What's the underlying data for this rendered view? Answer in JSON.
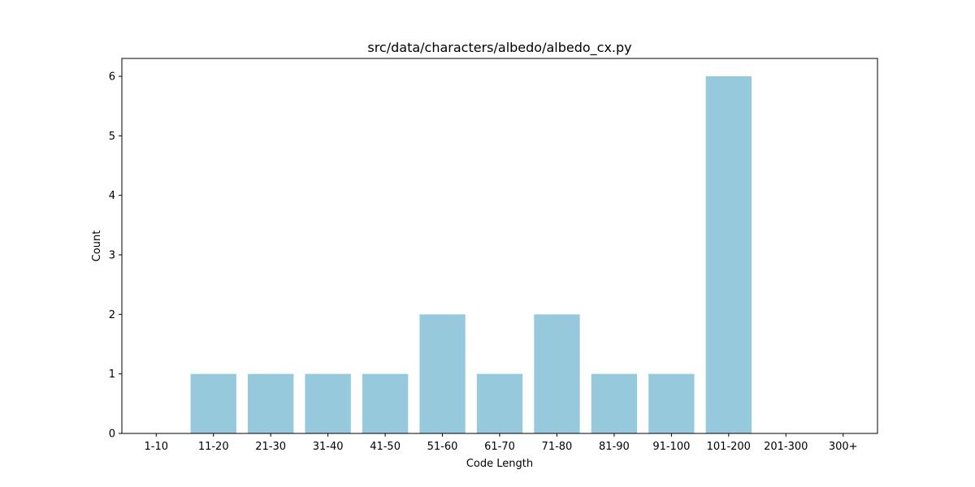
{
  "chart_data": {
    "type": "bar",
    "title": "src/data/characters/albedo/albedo_cx.py",
    "xlabel": "Code Length",
    "ylabel": "Count",
    "categories": [
      "1-10",
      "11-20",
      "21-30",
      "31-40",
      "41-50",
      "51-60",
      "61-70",
      "71-80",
      "81-90",
      "91-100",
      "101-200",
      "201-300",
      "300+"
    ],
    "values": [
      0,
      1,
      1,
      1,
      1,
      2,
      1,
      2,
      1,
      1,
      6,
      0,
      0
    ],
    "ylim": [
      0,
      6.3
    ],
    "yticks": [
      0,
      1,
      2,
      3,
      4,
      5,
      6
    ],
    "grid": false,
    "bar_color": "#96c9dc",
    "axis_color": "#000000"
  }
}
